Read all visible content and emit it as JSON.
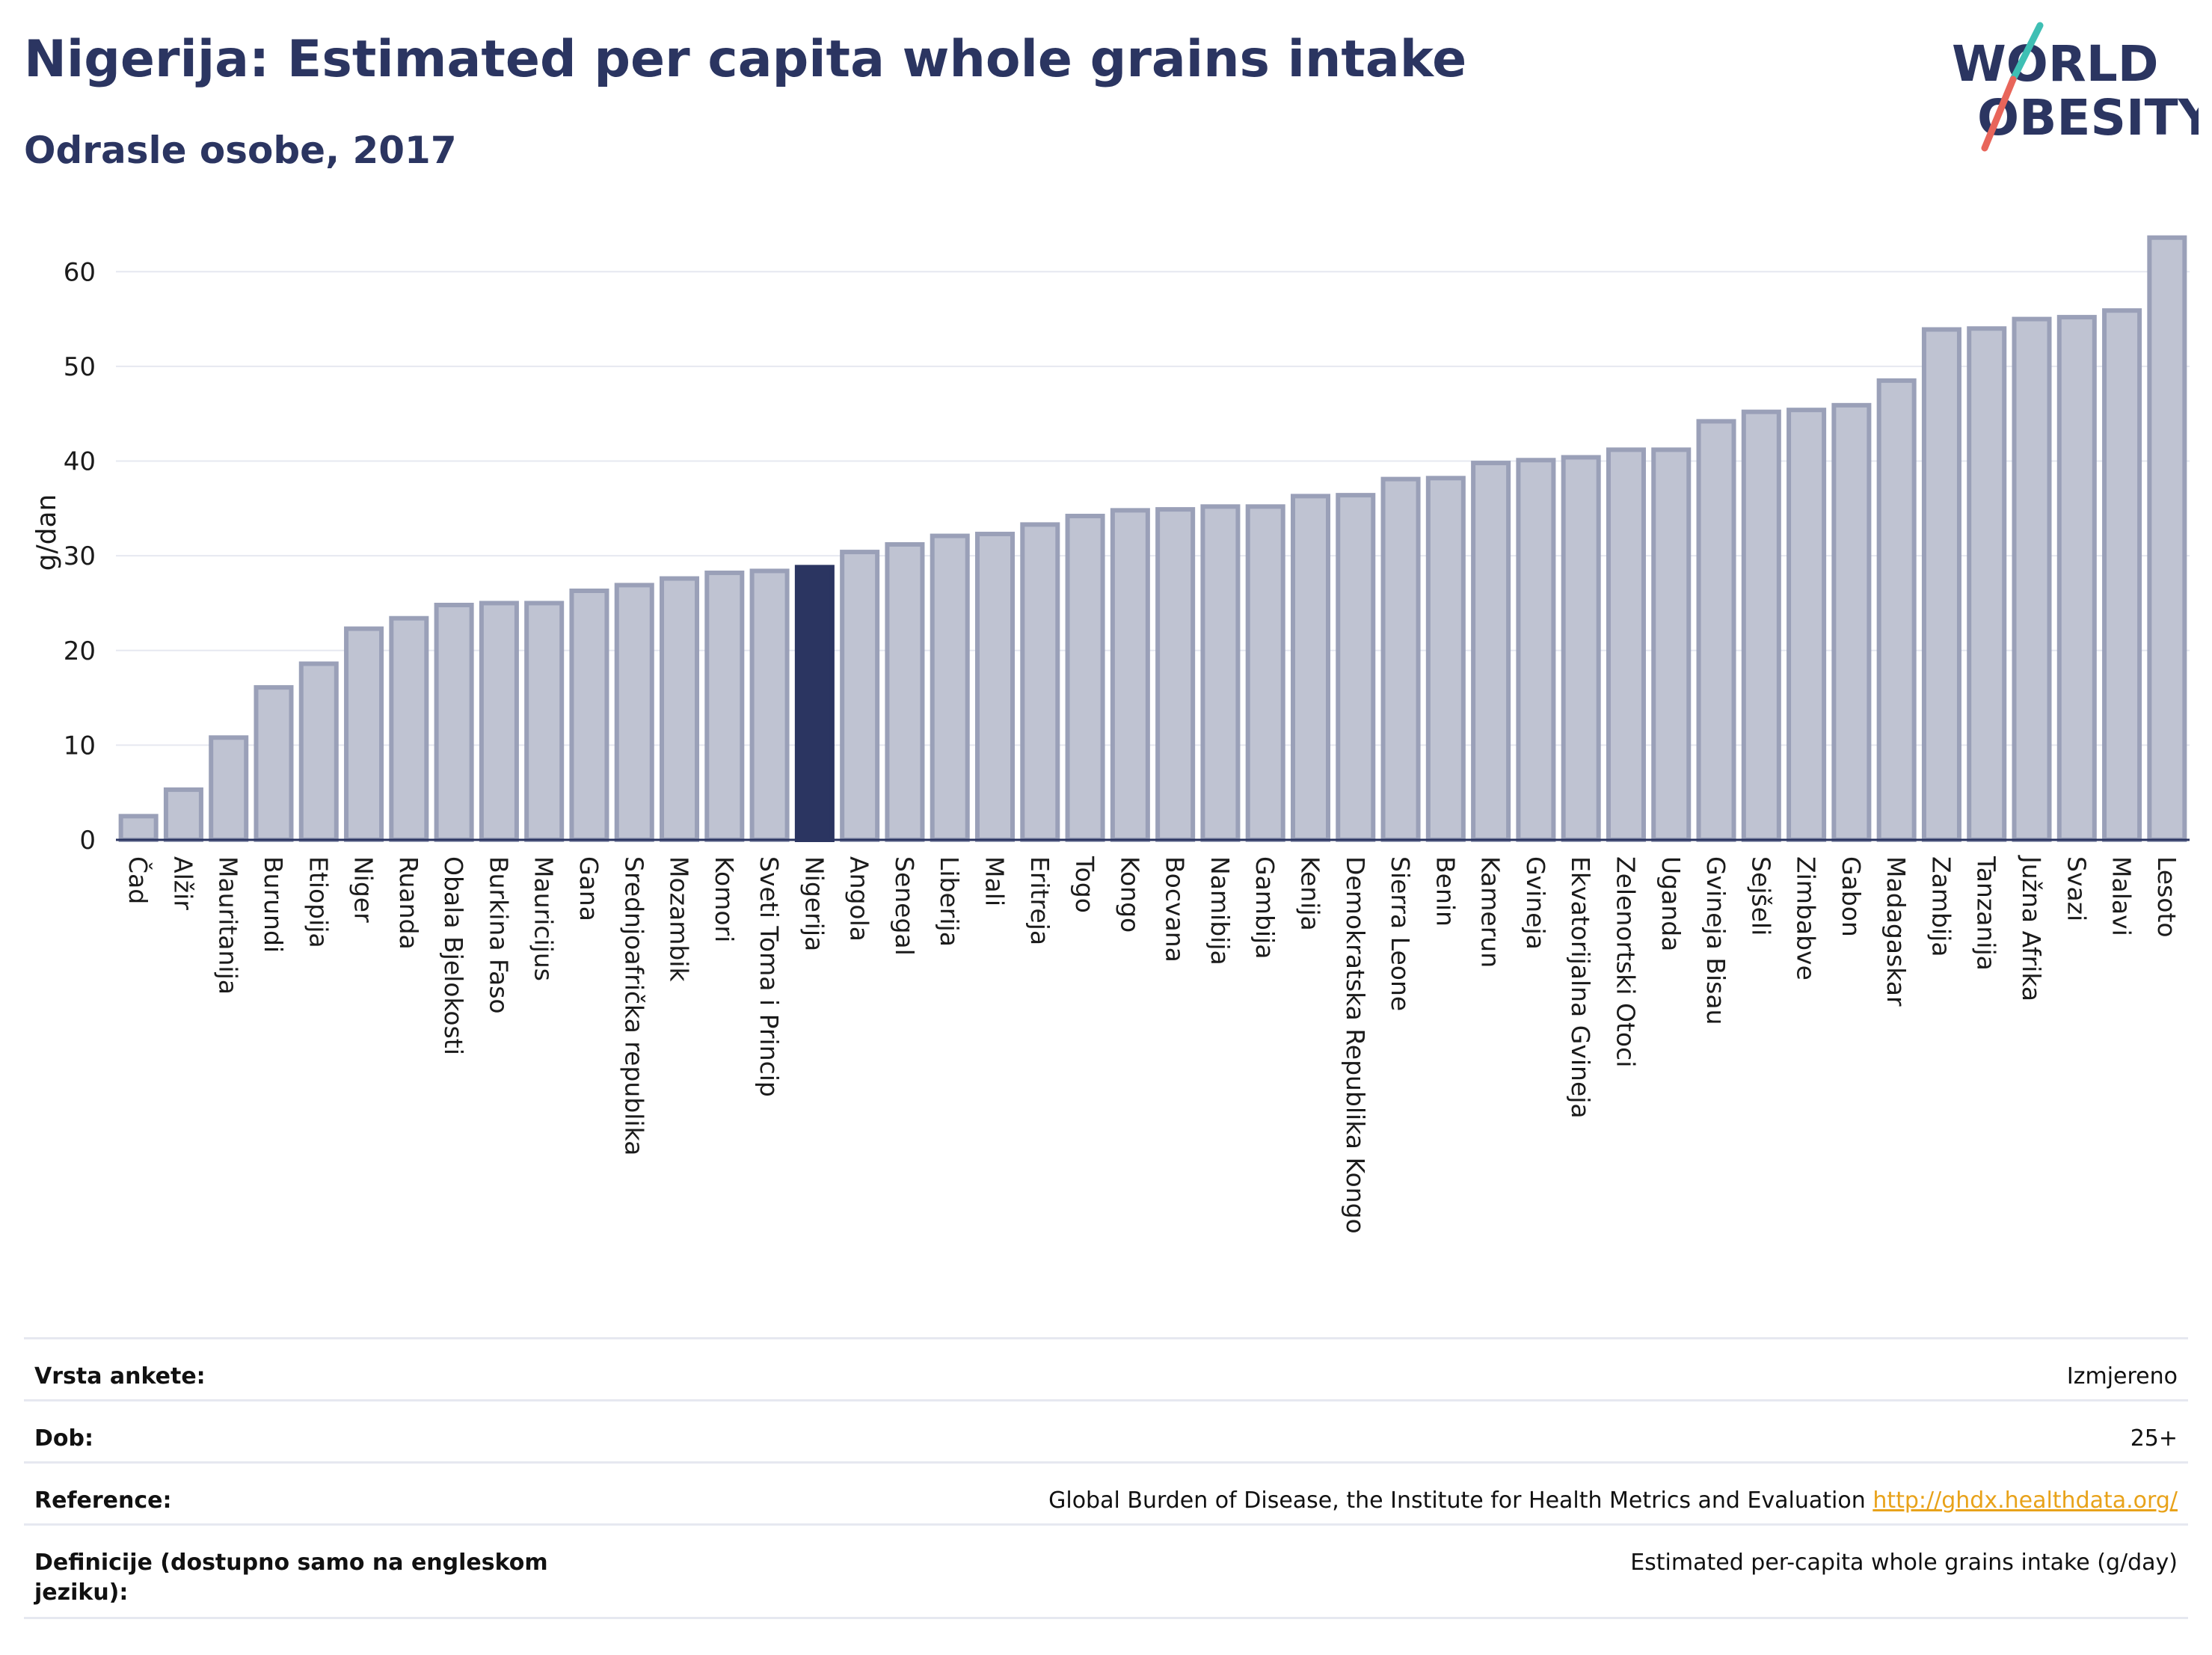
{
  "header": {
    "title": "Nigerija: Estimated per capita whole grains intake",
    "subtitle": "Odrasle osobe, 2017"
  },
  "logo": {
    "line1": "WORLD",
    "line2": "OBESITY"
  },
  "colors": {
    "bar": "#bfc3d2",
    "bar_border": "#9aa0b8",
    "highlight": "#2b3561",
    "grid": "#e6e8f0"
  },
  "chart_data": {
    "type": "bar",
    "ylabel": "g/dan",
    "ylim": [
      0,
      65
    ],
    "yticks": [
      0,
      10,
      20,
      30,
      40,
      50,
      60
    ],
    "grid": true,
    "highlight": "Nigerija",
    "categories": [
      "Čad",
      "Alžir",
      "Mauritanija",
      "Burundi",
      "Etiopija",
      "Niger",
      "Ruanda",
      "Obala Bjelokosti",
      "Burkina Faso",
      "Mauricijus",
      "Gana",
      "Srednjoafrička republika",
      "Mozambik",
      "Komori",
      "Sveti Toma i Princip",
      "Nigerija",
      "Angola",
      "Senegal",
      "Liberija",
      "Mali",
      "Eritreja",
      "Togo",
      "Kongo",
      "Bocvana",
      "Namibija",
      "Gambija",
      "Kenija",
      "Demokratska Republika Kongo",
      "Sierra Leone",
      "Benin",
      "Kamerun",
      "Gvineja",
      "Ekvatorijalna Gvineja",
      "Zelenortski Otoci",
      "Uganda",
      "Gvineja Bisau",
      "Sejšeli",
      "Zimbabve",
      "Gabon",
      "Madagaskar",
      "Zambija",
      "Tanzanija",
      "Južna Afrika",
      "Svazi",
      "Malavi",
      "Lesoto"
    ],
    "values": [
      2.5,
      5.3,
      10.8,
      16.1,
      18.6,
      22.3,
      23.4,
      24.8,
      25.0,
      25.0,
      26.3,
      26.9,
      27.6,
      28.2,
      28.4,
      28.8,
      30.4,
      31.2,
      32.1,
      32.3,
      33.3,
      34.2,
      34.8,
      34.9,
      35.2,
      35.2,
      36.3,
      36.4,
      38.1,
      38.2,
      39.8,
      40.1,
      40.4,
      41.2,
      41.2,
      44.2,
      45.2,
      45.4,
      45.9,
      48.5,
      53.9,
      54.0,
      55.0,
      55.2,
      55.9,
      63.6
    ]
  },
  "info": {
    "rows": [
      {
        "label": "Vrsta ankete:",
        "value": "Izmjereno"
      },
      {
        "label": "Dob:",
        "value": "25+"
      },
      {
        "label": "Reference:",
        "value": "Global Burden of Disease, the Institute for Health Metrics and Evaluation",
        "link": "http://ghdx.healthdata.org/"
      },
      {
        "label": "Definicije (dostupno samo na engleskom jeziku):",
        "value": "Estimated per-capita whole grains intake (g/day)"
      }
    ]
  }
}
